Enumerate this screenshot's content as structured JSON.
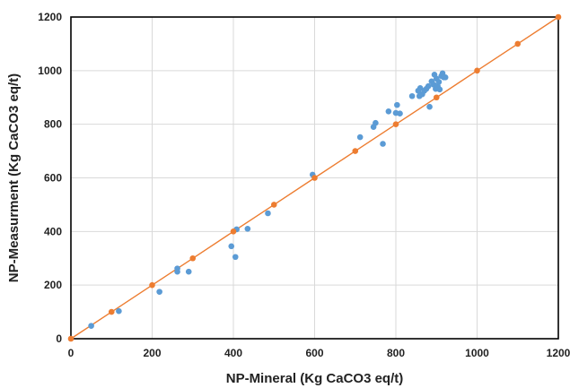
{
  "chart_data": {
    "type": "scatter",
    "title": "",
    "xlabel": "NP-Mineral (Kg CaCO3 eq/t)",
    "ylabel": "NP-Measurment (Kg CaCO3 eq/t)",
    "xlim": [
      0,
      1200
    ],
    "ylim": [
      0,
      1200
    ],
    "xticks": [
      0,
      200,
      400,
      600,
      800,
      1000,
      1200
    ],
    "yticks": [
      0,
      200,
      400,
      600,
      800,
      1000,
      1200
    ],
    "grid": true,
    "legend": "none",
    "series": [
      {
        "color": "#5b9bd5",
        "marker": "circle",
        "points": [
          [
            50,
            48
          ],
          [
            118,
            103
          ],
          [
            218,
            175
          ],
          [
            262,
            250
          ],
          [
            262,
            262
          ],
          [
            290,
            250
          ],
          [
            395,
            345
          ],
          [
            405,
            305
          ],
          [
            408,
            408
          ],
          [
            435,
            410
          ],
          [
            485,
            468
          ],
          [
            595,
            612
          ],
          [
            712,
            752
          ],
          [
            745,
            790
          ],
          [
            750,
            805
          ],
          [
            768,
            727
          ],
          [
            782,
            848
          ],
          [
            800,
            842
          ],
          [
            803,
            872
          ],
          [
            810,
            840
          ],
          [
            840,
            905
          ],
          [
            855,
            925
          ],
          [
            858,
            905
          ],
          [
            860,
            935
          ],
          [
            865,
            912
          ],
          [
            870,
            925
          ],
          [
            875,
            932
          ],
          [
            880,
            942
          ],
          [
            883,
            865
          ],
          [
            888,
            960
          ],
          [
            893,
            948
          ],
          [
            895,
            985
          ],
          [
            898,
            932
          ],
          [
            900,
            970
          ],
          [
            903,
            942
          ],
          [
            906,
            958
          ],
          [
            908,
            930
          ],
          [
            912,
            980
          ],
          [
            915,
            990
          ],
          [
            918,
            975
          ],
          [
            922,
            975
          ]
        ]
      },
      {
        "color": "#ed7d31",
        "marker": "circle",
        "line": true,
        "points": [
          [
            0,
            0
          ],
          [
            100,
            100
          ],
          [
            200,
            200
          ],
          [
            300,
            300
          ],
          [
            400,
            400
          ],
          [
            500,
            500
          ],
          [
            600,
            600
          ],
          [
            700,
            700
          ],
          [
            800,
            800
          ],
          [
            900,
            900
          ],
          [
            1000,
            1000
          ],
          [
            1100,
            1100
          ],
          [
            1200,
            1200
          ]
        ]
      }
    ]
  }
}
